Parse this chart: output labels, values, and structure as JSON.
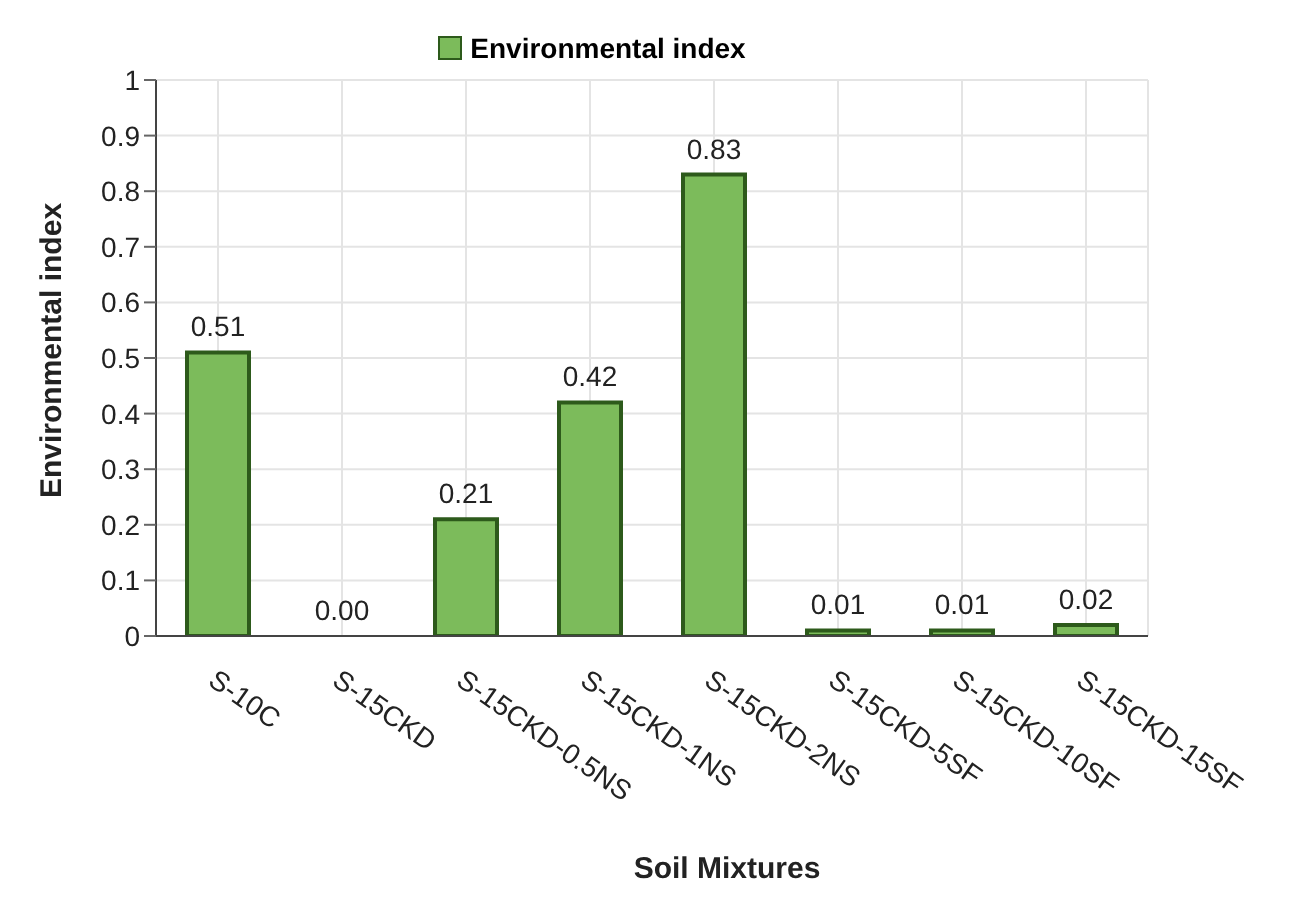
{
  "chart_data": {
    "type": "bar",
    "xlabel": "Soil Mixtures",
    "ylabel": "Environmental index",
    "categories": [
      "S-10C",
      "S-15CKD",
      "S-15CKD-0.5NS",
      "S-15CKD-1NS",
      "S-15CKD-2NS",
      "S-15CKD-5SF",
      "S-15CKD-10SF",
      "S-15CKD-15SF"
    ],
    "series": [
      {
        "name": "Environmental index",
        "color": "#7cbb5b",
        "values": [
          0.51,
          0.0,
          0.21,
          0.42,
          0.83,
          0.01,
          0.01,
          0.02
        ],
        "value_labels": [
          "0.51",
          "0.00",
          "0.21",
          "0.42",
          "0.83",
          "0.01",
          "0.01",
          "0.02"
        ]
      }
    ],
    "ylim": [
      0,
      1
    ],
    "yticks": [
      0,
      0.1,
      0.2,
      0.3,
      0.4,
      0.5,
      0.6,
      0.7,
      0.8,
      0.9,
      1
    ],
    "grid": true,
    "legend": "top"
  }
}
